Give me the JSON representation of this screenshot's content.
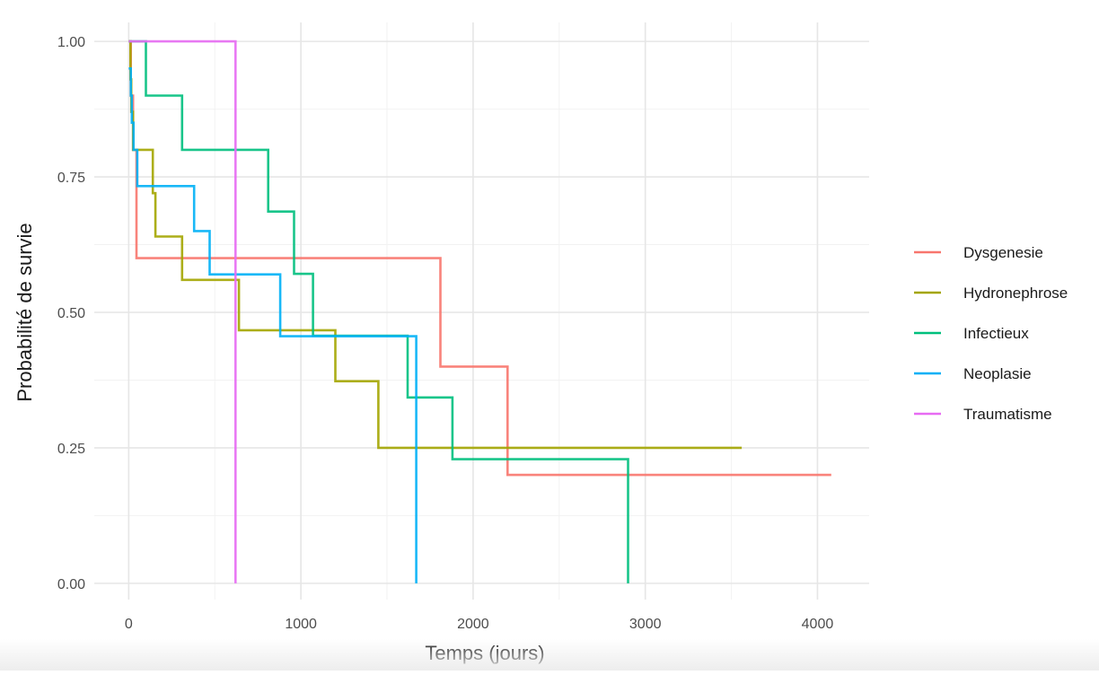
{
  "chart_data": {
    "type": "line",
    "step": true,
    "title": "",
    "xlabel": "Temps (jours)",
    "ylabel": "Probabilité de survie",
    "xlim": [
      -200,
      4300
    ],
    "ylim": [
      -0.03,
      1.035
    ],
    "x_ticks": [
      0,
      1000,
      2000,
      3000,
      4000
    ],
    "x_tick_labels": [
      "0",
      "1000",
      "2000",
      "3000",
      "4000"
    ],
    "x_minor_ticks": [
      500,
      1500,
      2500,
      3500
    ],
    "y_ticks": [
      0,
      0.25,
      0.5,
      0.75,
      1
    ],
    "y_tick_labels": [
      "0.00",
      "0.25",
      "0.50",
      "0.75",
      "1.00"
    ],
    "y_minor_ticks": [
      0.125,
      0.375,
      0.625,
      0.875
    ],
    "grid": true,
    "legend_position": "right",
    "series": [
      {
        "name": "Dysgenesie",
        "color": "#F8766D",
        "points": [
          [
            0,
            1.0
          ],
          [
            12,
            0.9
          ],
          [
            25,
            0.8
          ],
          [
            45,
            0.6
          ],
          [
            1810,
            0.4
          ],
          [
            2200,
            0.2
          ],
          [
            4080,
            0.2
          ]
        ]
      },
      {
        "name": "Hydronephrose",
        "color": "#A3A500",
        "points": [
          [
            0,
            1.0
          ],
          [
            10,
            0.93
          ],
          [
            15,
            0.87
          ],
          [
            25,
            0.8
          ],
          [
            140,
            0.72
          ],
          [
            155,
            0.64
          ],
          [
            310,
            0.56
          ],
          [
            640,
            0.467
          ],
          [
            1200,
            0.373
          ],
          [
            1450,
            0.25
          ],
          [
            3560,
            0.25
          ]
        ]
      },
      {
        "name": "Infectieux",
        "color": "#00BF7D",
        "points": [
          [
            0,
            1.0
          ],
          [
            100,
            0.9
          ],
          [
            310,
            0.8
          ],
          [
            810,
            0.686
          ],
          [
            960,
            0.571
          ],
          [
            1070,
            0.457
          ],
          [
            1620,
            0.343
          ],
          [
            1880,
            0.229
          ],
          [
            2900,
            0.0
          ]
        ]
      },
      {
        "name": "Neoplasie",
        "color": "#00B0F6",
        "points": [
          [
            0,
            0.95
          ],
          [
            12,
            0.9
          ],
          [
            18,
            0.85
          ],
          [
            28,
            0.8
          ],
          [
            50,
            0.733
          ],
          [
            380,
            0.65
          ],
          [
            470,
            0.57
          ],
          [
            880,
            0.456
          ],
          [
            1670,
            0.0
          ]
        ]
      },
      {
        "name": "Traumatisme",
        "color": "#E76BF3",
        "points": [
          [
            0,
            1.0
          ],
          [
            620,
            0.0
          ]
        ]
      }
    ]
  }
}
